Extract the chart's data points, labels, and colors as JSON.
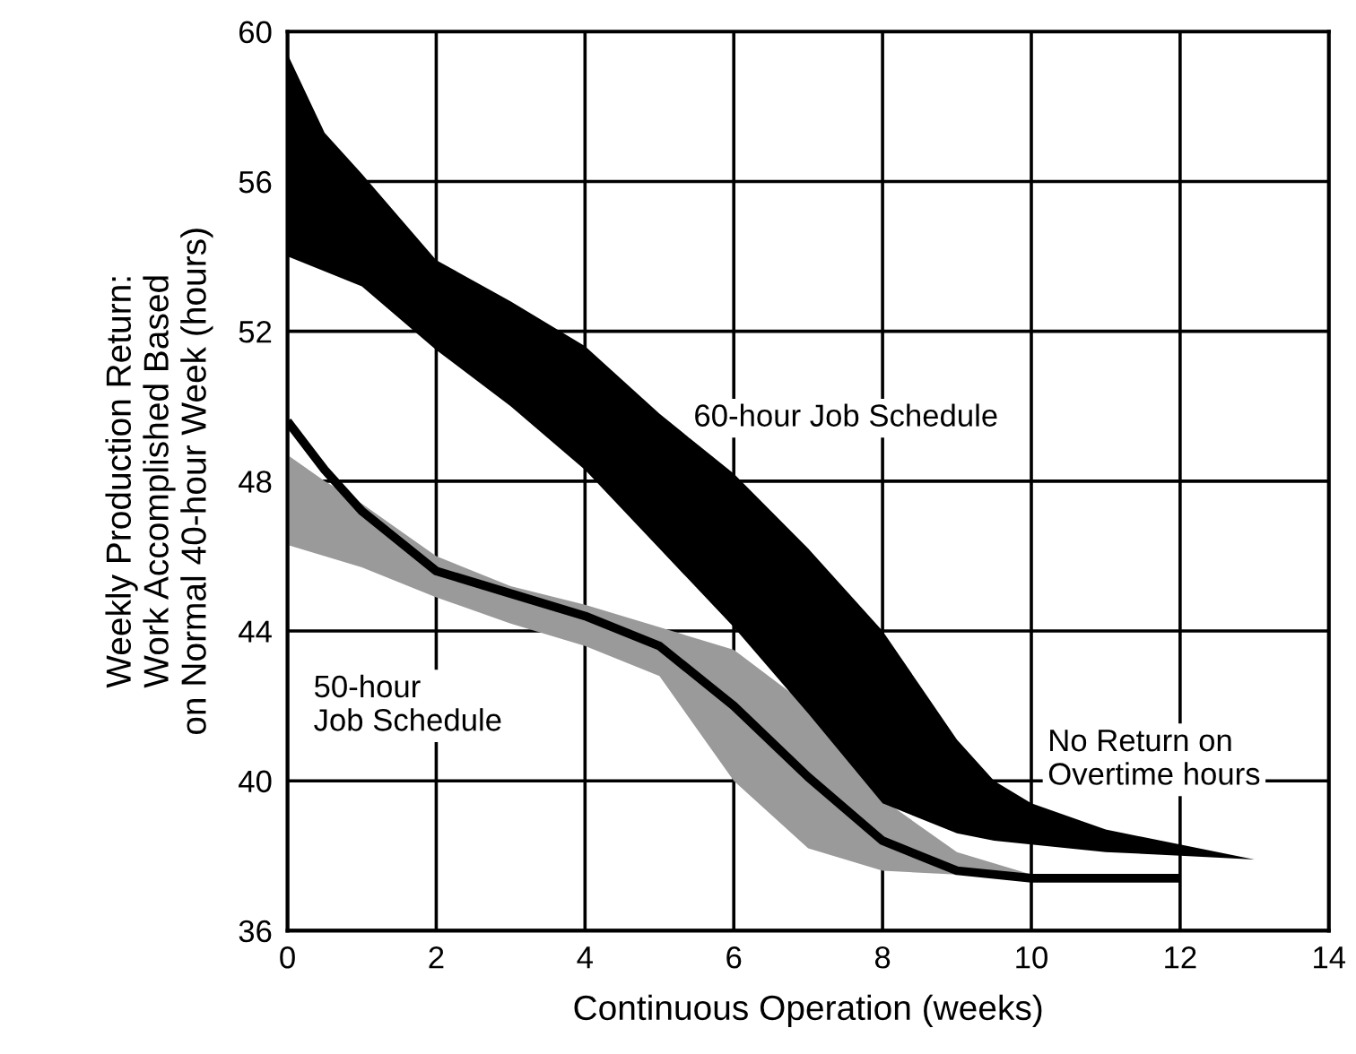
{
  "chart_data": {
    "type": "line",
    "xlabel": "Continuous Operation (weeks)",
    "ylabel": "Weekly Production Return:\nWork Accomplished Based\non Normal 40-hour Week (hours)",
    "xlim": [
      0,
      14
    ],
    "ylim": [
      36,
      60
    ],
    "xticks": [
      0,
      2,
      4,
      6,
      8,
      10,
      12,
      14
    ],
    "yticks": [
      36,
      40,
      44,
      48,
      52,
      56,
      60
    ],
    "grid": true,
    "annotations": [
      "No Return on\nOvertime hours"
    ],
    "series": [
      {
        "name": "60-hour Job Schedule",
        "color": "#000000",
        "x": [
          0,
          0.5,
          1,
          2,
          3,
          4,
          5,
          6,
          7,
          8,
          9,
          9.5,
          10,
          11,
          12,
          13
        ],
        "values": [
          null,
          null,
          null,
          null,
          null,
          null,
          null,
          null,
          null,
          null,
          null,
          null,
          null,
          null,
          null,
          null
        ],
        "upper": [
          59.4,
          57.3,
          56.2,
          53.9,
          52.8,
          51.6,
          49.8,
          48.2,
          46.2,
          44.0,
          41.1,
          40.0,
          39.4,
          38.7,
          38.3,
          37.9
        ],
        "lower": [
          54.0,
          53.6,
          53.2,
          51.5,
          50.0,
          48.3,
          46.2,
          44.1,
          41.8,
          39.4,
          38.6,
          38.4,
          38.3,
          38.1,
          38.0,
          37.9
        ]
      },
      {
        "color": "#9a9a9a",
        "x": [
          0,
          0.5,
          1,
          2,
          3,
          4,
          5,
          6,
          7,
          8,
          9,
          10
        ],
        "values": [
          null,
          null,
          null,
          null,
          null,
          null,
          null,
          null,
          null,
          null,
          null,
          null
        ],
        "upper": [
          48.7,
          48.0,
          47.4,
          46.0,
          45.2,
          44.7,
          44.1,
          43.5,
          42.0,
          39.5,
          38.1,
          37.5
        ],
        "lower": [
          46.3,
          46.0,
          45.7,
          44.9,
          44.2,
          43.6,
          42.8,
          40.0,
          38.2,
          37.6,
          37.5,
          37.4
        ]
      },
      {
        "name": "50-hour\nJob Schedule",
        "color": "#000000",
        "x": [
          0,
          0.5,
          1,
          2,
          3,
          4,
          5,
          6,
          7,
          8,
          9,
          10,
          11,
          12
        ],
        "values": [
          49.6,
          48.3,
          47.2,
          45.6,
          45.0,
          44.4,
          43.6,
          42.0,
          40.1,
          38.4,
          37.6,
          37.4,
          37.4,
          37.4
        ]
      }
    ]
  }
}
